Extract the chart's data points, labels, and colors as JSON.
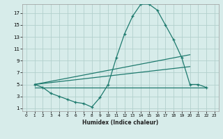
{
  "background_color": "#d7ecea",
  "grid_color": "#b2d0cd",
  "line_color": "#1e7a6e",
  "xlabel": "Humidex (Indice chaleur)",
  "xlim": [
    -0.5,
    23.5
  ],
  "ylim": [
    0.5,
    18.5
  ],
  "xticks": [
    0,
    1,
    2,
    3,
    4,
    5,
    6,
    7,
    8,
    9,
    10,
    11,
    12,
    13,
    14,
    15,
    16,
    17,
    18,
    19,
    20,
    21,
    22,
    23
  ],
  "yticks": [
    1,
    3,
    5,
    7,
    9,
    11,
    13,
    15,
    17
  ],
  "curve1_x": [
    1,
    2,
    3,
    4,
    5,
    6,
    7,
    8,
    9,
    10,
    11,
    12,
    13,
    14,
    15,
    16,
    17,
    18,
    19,
    20,
    21,
    22
  ],
  "curve1_y": [
    5.0,
    4.5,
    3.5,
    3.0,
    2.5,
    2.0,
    1.8,
    1.2,
    2.8,
    5.0,
    9.5,
    13.5,
    16.5,
    18.5,
    18.5,
    17.5,
    15.0,
    12.5,
    9.5,
    5.0,
    5.0,
    4.5
  ],
  "curve2_x": [
    1,
    20
  ],
  "curve2_y": [
    5.0,
    10.0
  ],
  "curve3_x": [
    1,
    20
  ],
  "curve3_y": [
    5.0,
    8.0
  ],
  "curve4_x": [
    1,
    22
  ],
  "curve4_y": [
    4.5,
    4.5
  ]
}
